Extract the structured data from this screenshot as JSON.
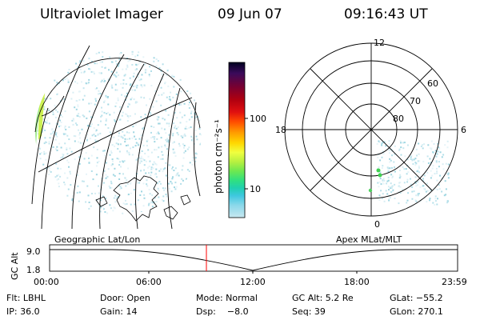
{
  "header": {
    "title": "Ultraviolet Imager",
    "date": "09 Jun 07",
    "time": "09:16:43 UT"
  },
  "colorbar": {
    "label": "photon cm⁻²s⁻¹",
    "ticks": [
      "100",
      "10"
    ],
    "colors": [
      "#000020",
      "#3a0a5a",
      "#7a0030",
      "#b00010",
      "#e01010",
      "#ff4a00",
      "#ff9a00",
      "#ffd800",
      "#f0ff40",
      "#b8f040",
      "#6ee850",
      "#30e080",
      "#20d0b0",
      "#40c8e0",
      "#8ad8ea",
      "#c8e8f0"
    ]
  },
  "polar": {
    "hour_labels": [
      "12",
      "18",
      "6",
      "0"
    ],
    "lat_labels": [
      "60",
      "70",
      "80"
    ]
  },
  "altitude_plot": {
    "left_label": "Geographic Lat/Lon",
    "right_label": "Apex MLat/MLT",
    "y_axis_label": "GC Alt",
    "y_ticks": [
      "9.0",
      "1.8"
    ],
    "x_ticks": [
      "00:00",
      "06:00",
      "12:00",
      "18:00",
      "23:59"
    ],
    "current_time_color": "#ff0000"
  },
  "info": {
    "row1": {
      "flt": "Flt: LBHL",
      "door": "Door: Open",
      "mode": "Mode: Normal",
      "gcalt": "GC Alt: 5.2 Re",
      "glat": "GLat: −55.2"
    },
    "row2": {
      "ip": "IP: 36.0",
      "gain": "Gain: 14",
      "dsp": "Dsp:    −8.0",
      "seq": "Seq: 39",
      "glon": "GLon: 270.1"
    }
  }
}
